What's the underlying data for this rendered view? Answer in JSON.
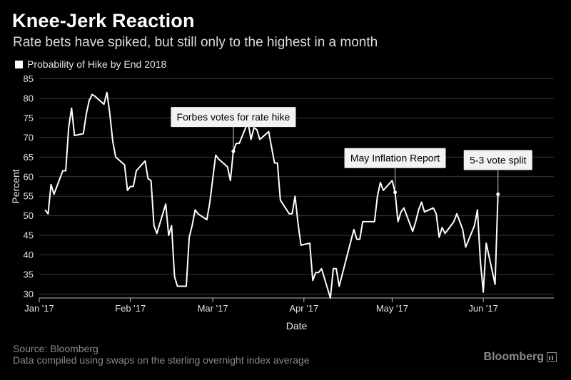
{
  "header": {
    "title": "Knee-Jerk Reaction",
    "subtitle": "Rate bets have spiked, but still only to the highest in a month"
  },
  "footer": {
    "source": "Source: Bloomberg",
    "note": "Data compiled using swaps on the sterling overnight index average",
    "brand": "Bloomberg"
  },
  "colors": {
    "background": "#000000",
    "line": "#ffffff",
    "grid": "#3a3a3a",
    "annotation_box": "#f2f2f2"
  },
  "chart_data": {
    "type": "line",
    "title": "Knee-Jerk Reaction",
    "subtitle": "Rate bets have spiked, but still only to the highest in a month",
    "xlabel": "Date",
    "ylabel": "Percent",
    "ylim": [
      29,
      86
    ],
    "yticks": [
      30,
      35,
      40,
      45,
      50,
      55,
      60,
      65,
      70,
      75,
      80,
      85
    ],
    "xlim": [
      "2017-01-01",
      "2017-06-25"
    ],
    "xticks": [
      {
        "date": "2017-01-01",
        "label": "Jan '17"
      },
      {
        "date": "2017-02-01",
        "label": "Feb '17"
      },
      {
        "date": "2017-03-01",
        "label": "Mar '17"
      },
      {
        "date": "2017-04-01",
        "label": "Apr '17"
      },
      {
        "date": "2017-05-01",
        "label": "May '17"
      },
      {
        "date": "2017-06-01",
        "label": "Jun '17"
      }
    ],
    "grid": true,
    "legend_position": "top-left",
    "series": [
      {
        "name": "Probability of Hike by End 2018",
        "color": "#ffffff",
        "points": [
          [
            "2017-01-03",
            51.5
          ],
          [
            "2017-01-04",
            50.5
          ],
          [
            "2017-01-05",
            58.0
          ],
          [
            "2017-01-06",
            55.5
          ],
          [
            "2017-01-09",
            61.5
          ],
          [
            "2017-01-10",
            61.5
          ],
          [
            "2017-01-11",
            72.5
          ],
          [
            "2017-01-12",
            77.5
          ],
          [
            "2017-01-13",
            70.5
          ],
          [
            "2017-01-16",
            71.0
          ],
          [
            "2017-01-17",
            76.0
          ],
          [
            "2017-01-18",
            79.5
          ],
          [
            "2017-01-19",
            81.0
          ],
          [
            "2017-01-20",
            80.5
          ],
          [
            "2017-01-23",
            78.5
          ],
          [
            "2017-01-24",
            81.5
          ],
          [
            "2017-01-25",
            76.0
          ],
          [
            "2017-01-26",
            69.0
          ],
          [
            "2017-01-27",
            65.0
          ],
          [
            "2017-01-30",
            63.0
          ],
          [
            "2017-01-31",
            56.5
          ],
          [
            "2017-02-01",
            57.5
          ],
          [
            "2017-02-02",
            57.5
          ],
          [
            "2017-02-03",
            61.5
          ],
          [
            "2017-02-06",
            64.0
          ],
          [
            "2017-02-07",
            59.5
          ],
          [
            "2017-02-08",
            59.0
          ],
          [
            "2017-02-09",
            47.5
          ],
          [
            "2017-02-10",
            45.5
          ],
          [
            "2017-02-13",
            53.0
          ],
          [
            "2017-02-14",
            45.0
          ],
          [
            "2017-02-15",
            47.5
          ],
          [
            "2017-02-16",
            34.5
          ],
          [
            "2017-02-17",
            32.0
          ],
          [
            "2017-02-20",
            32.0
          ],
          [
            "2017-02-21",
            44.5
          ],
          [
            "2017-02-22",
            47.5
          ],
          [
            "2017-02-23",
            51.5
          ],
          [
            "2017-02-24",
            50.5
          ],
          [
            "2017-02-27",
            49.0
          ],
          [
            "2017-02-28",
            53.5
          ],
          [
            "2017-03-01",
            59.5
          ],
          [
            "2017-03-02",
            65.5
          ],
          [
            "2017-03-03",
            64.5
          ],
          [
            "2017-03-06",
            62.5
          ],
          [
            "2017-03-07",
            59.0
          ],
          [
            "2017-03-08",
            66.5
          ],
          [
            "2017-03-09",
            68.5
          ],
          [
            "2017-03-10",
            68.5
          ],
          [
            "2017-03-13",
            74.0
          ],
          [
            "2017-03-14",
            69.5
          ],
          [
            "2017-03-15",
            72.5
          ],
          [
            "2017-03-16",
            72.0
          ],
          [
            "2017-03-17",
            69.5
          ],
          [
            "2017-03-20",
            71.5
          ],
          [
            "2017-03-21",
            67.5
          ],
          [
            "2017-03-22",
            63.5
          ],
          [
            "2017-03-23",
            63.5
          ],
          [
            "2017-03-24",
            54.0
          ],
          [
            "2017-03-27",
            50.5
          ],
          [
            "2017-03-28",
            50.5
          ],
          [
            "2017-03-29",
            55.0
          ],
          [
            "2017-03-30",
            48.0
          ],
          [
            "2017-03-31",
            42.5
          ],
          [
            "2017-04-03",
            43.0
          ],
          [
            "2017-04-04",
            33.5
          ],
          [
            "2017-04-05",
            35.5
          ],
          [
            "2017-04-06",
            35.5
          ],
          [
            "2017-04-07",
            36.5
          ],
          [
            "2017-04-10",
            29.0
          ],
          [
            "2017-04-11",
            36.5
          ],
          [
            "2017-04-12",
            36.5
          ],
          [
            "2017-04-13",
            32.0
          ],
          [
            "2017-04-18",
            46.5
          ],
          [
            "2017-04-19",
            44.0
          ],
          [
            "2017-04-20",
            44.0
          ],
          [
            "2017-04-21",
            48.5
          ],
          [
            "2017-04-24",
            48.5
          ],
          [
            "2017-04-25",
            48.5
          ],
          [
            "2017-04-26",
            55.0
          ],
          [
            "2017-04-27",
            58.5
          ],
          [
            "2017-04-28",
            56.5
          ],
          [
            "2017-05-01",
            59.0
          ],
          [
            "2017-05-02",
            56.0
          ],
          [
            "2017-05-03",
            48.5
          ],
          [
            "2017-05-04",
            51.0
          ],
          [
            "2017-05-05",
            52.0
          ],
          [
            "2017-05-08",
            46.0
          ],
          [
            "2017-05-09",
            48.5
          ],
          [
            "2017-05-10",
            51.5
          ],
          [
            "2017-05-11",
            53.5
          ],
          [
            "2017-05-12",
            51.0
          ],
          [
            "2017-05-15",
            52.0
          ],
          [
            "2017-05-16",
            50.5
          ],
          [
            "2017-05-17",
            44.5
          ],
          [
            "2017-05-18",
            47.0
          ],
          [
            "2017-05-19",
            45.5
          ],
          [
            "2017-05-22",
            48.5
          ],
          [
            "2017-05-23",
            50.5
          ],
          [
            "2017-05-24",
            48.5
          ],
          [
            "2017-05-25",
            46.5
          ],
          [
            "2017-05-26",
            42.0
          ],
          [
            "2017-05-29",
            47.5
          ],
          [
            "2017-05-30",
            51.5
          ],
          [
            "2017-05-31",
            38.5
          ],
          [
            "2017-06-01",
            30.5
          ],
          [
            "2017-06-02",
            43.0
          ],
          [
            "2017-06-05",
            32.5
          ],
          [
            "2017-06-06",
            55.5
          ]
        ]
      }
    ],
    "annotations": [
      {
        "text": "Forbes votes for rate hike",
        "date": "2017-03-08",
        "value": 66.5
      },
      {
        "text": "May Inflation Report",
        "date": "2017-05-02",
        "value": 56.0
      },
      {
        "text": "5-3 vote split",
        "date": "2017-06-06",
        "value": 55.5
      }
    ]
  }
}
